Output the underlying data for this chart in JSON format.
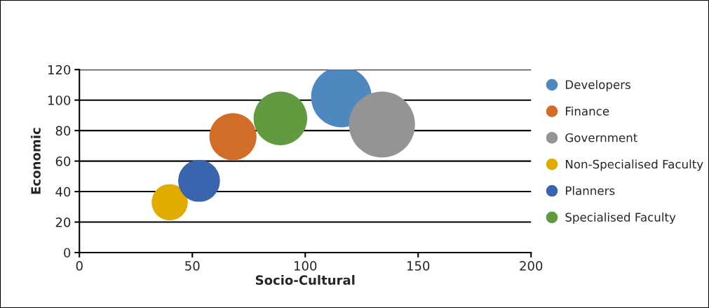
{
  "chart_data": {
    "type": "bubble",
    "xlabel": "Socio-Cultural",
    "ylabel": "Economic",
    "xlim": [
      0,
      200
    ],
    "xticks": [
      0,
      50,
      100,
      150,
      200
    ],
    "ylim": [
      0,
      120
    ],
    "yticks": [
      0,
      20,
      40,
      60,
      80,
      100,
      120
    ],
    "grid": "y",
    "legend": "right",
    "marker": "circle",
    "series": [
      {
        "name": "Developers",
        "color": "#4f88be",
        "x": [
          116
        ],
        "values": [
          102
        ],
        "sizes": [
          0.84
        ]
      },
      {
        "name": "Finance",
        "color": "#d16d29",
        "x": [
          68
        ],
        "values": [
          76
        ],
        "sizes": [
          0.51
        ]
      },
      {
        "name": "Government",
        "color": "#949494",
        "x": [
          134
        ],
        "values": [
          84
        ],
        "sizes": [
          1
        ]
      },
      {
        "name": "Non-Specialised Faculty",
        "color": "#e2ab00",
        "x": [
          40
        ],
        "values": [
          33
        ],
        "sizes": [
          0.3
        ]
      },
      {
        "name": "Planners",
        "color": "#3b64ae",
        "x": [
          53
        ],
        "values": [
          47
        ],
        "sizes": [
          0.4
        ]
      },
      {
        "name": "Specialised Faculty",
        "color": "#629a3f",
        "x": [
          89
        ],
        "values": [
          88
        ],
        "sizes": [
          0.66
        ]
      }
    ]
  }
}
